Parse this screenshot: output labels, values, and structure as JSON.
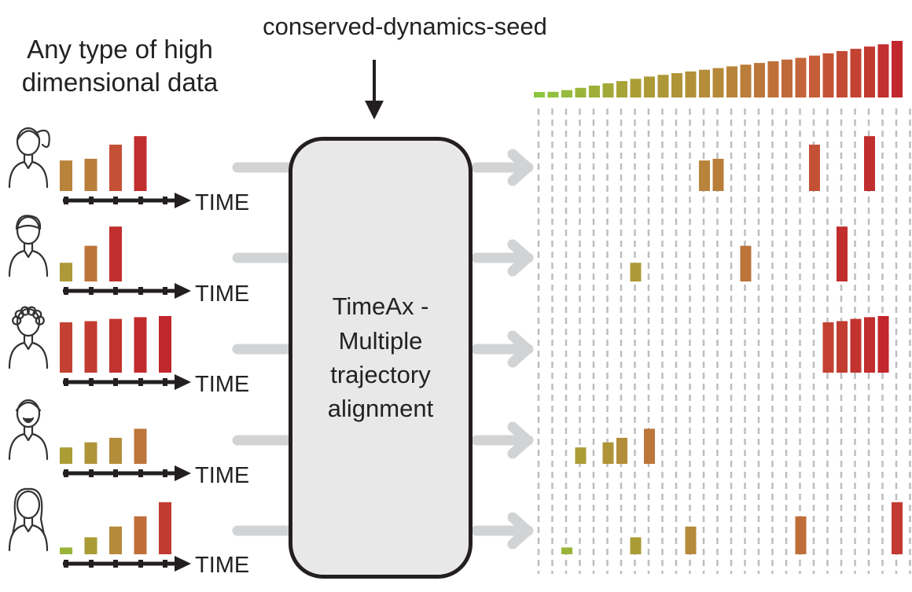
{
  "header_left": {
    "line1": "Any type of high",
    "line2": "dimensional data"
  },
  "seed_label": "conserved-dynamics-seed",
  "central_box": {
    "line1": "TimeAx -",
    "line2": "Multiple",
    "line3": "trajectory",
    "line4": "alignment"
  },
  "time_label": "TIME",
  "icons": [
    "woman-ponytail-icon",
    "man-icon",
    "woman-curly-icon",
    "man-beard-icon",
    "woman-long-hair-icon"
  ],
  "colors": {
    "green": "#8dc63f",
    "yellow": "#a9a035",
    "ochre": "#b5893a",
    "orange": "#c56139",
    "red": "#c1272d",
    "arrow_grey": "#d1d3d4",
    "dash_grey": "#bcbec0",
    "box_fill": "#e8e8e9"
  },
  "chart_data": {
    "type": "bar",
    "consensus": {
      "bins": 27,
      "values": [
        0.08,
        0.1,
        0.13,
        0.17,
        0.21,
        0.25,
        0.29,
        0.33,
        0.37,
        0.4,
        0.43,
        0.46,
        0.49,
        0.52,
        0.55,
        0.58,
        0.61,
        0.64,
        0.67,
        0.7,
        0.74,
        0.78,
        0.82,
        0.86,
        0.9,
        0.94,
        1.0
      ]
    },
    "patients": [
      {
        "input_values": [
          0.54,
          0.57,
          0.82,
          0.97
        ],
        "aligned_bins": [
          12,
          13,
          20,
          24
        ]
      },
      {
        "input_values": [
          0.33,
          0.63,
          0.97
        ],
        "aligned_bins": [
          7,
          15,
          22
        ]
      },
      {
        "input_values": [
          0.89,
          0.91,
          0.95,
          0.98,
          1.0
        ],
        "aligned_bins": [
          21,
          22,
          23,
          24,
          25
        ]
      },
      {
        "input_values": [
          0.29,
          0.38,
          0.46,
          0.62
        ],
        "aligned_bins": [
          3,
          5,
          6,
          8
        ]
      },
      {
        "input_values": [
          0.12,
          0.3,
          0.49,
          0.67,
          0.92
        ],
        "aligned_bins": [
          2,
          7,
          11,
          19,
          26
        ]
      }
    ]
  }
}
